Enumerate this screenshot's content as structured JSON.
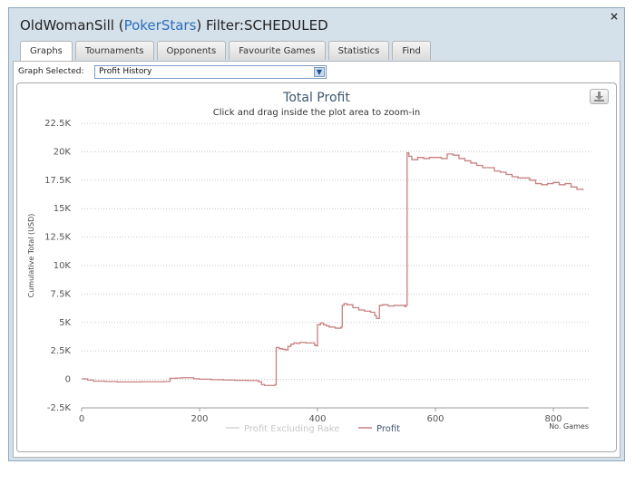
{
  "window": {
    "player": "OldWomanSill",
    "open_paren": " (",
    "site": "PokerStars",
    "close_paren": ") ",
    "filter": "Filter:SCHEDULED",
    "close_label": "×"
  },
  "tabs": [
    "Graphs",
    "Tournaments",
    "Opponents",
    "Favourite Games",
    "Statistics",
    "Find"
  ],
  "graph_selector": {
    "label": "Graph Selected:",
    "value": "Profit History"
  },
  "chart_data": {
    "type": "line",
    "title": "Total Profit",
    "subtitle": "Click and drag inside the plot area to zoom-in",
    "ylabel": "Cumulative Total (USD)",
    "xlabel": "No. Games",
    "xlim": [
      0,
      860
    ],
    "ylim": [
      -2500,
      22500
    ],
    "xticks": [
      0,
      200,
      400,
      600,
      800
    ],
    "xtick_labels": [
      "0",
      "200",
      "400",
      "600",
      "800"
    ],
    "yticks": [
      -2500,
      0,
      2500,
      5000,
      7500,
      10000,
      12500,
      15000,
      17500,
      20000,
      22500
    ],
    "ytick_labels": [
      "-2.5K",
      "0",
      "2.5K",
      "5K",
      "7.5K",
      "10K",
      "12.5K",
      "15K",
      "17.5K",
      "20K",
      "22.5K"
    ],
    "grid": "horizontal dotted",
    "legend_position": "bottom-center",
    "series": [
      {
        "name": "Profit Excluding Rake",
        "color": "#d5d5d5",
        "x": [],
        "y": []
      },
      {
        "name": "Profit",
        "color": "#c88080",
        "x": [
          0,
          10,
          20,
          40,
          60,
          80,
          100,
          120,
          140,
          148,
          150,
          160,
          170,
          185,
          190,
          200,
          220,
          240,
          260,
          280,
          300,
          305,
          310,
          320,
          328,
          330,
          335,
          340,
          345,
          350,
          355,
          360,
          365,
          370,
          380,
          395,
          398,
          400,
          405,
          410,
          415,
          420,
          430,
          440,
          442,
          445,
          450,
          460,
          470,
          480,
          490,
          497,
          500,
          505,
          510,
          520,
          530,
          540,
          548,
          550,
          552,
          555,
          560,
          570,
          580,
          590,
          600,
          610,
          620,
          630,
          640,
          650,
          660,
          670,
          680,
          690,
          700,
          710,
          720,
          730,
          740,
          750,
          760,
          770,
          780,
          790,
          800,
          810,
          820,
          830,
          840,
          850
        ],
        "y": [
          50,
          -50,
          -150,
          -180,
          -220,
          -220,
          -200,
          -200,
          -180,
          -180,
          100,
          120,
          150,
          150,
          60,
          20,
          -20,
          -50,
          -80,
          -100,
          -200,
          -450,
          -530,
          -530,
          -450,
          2800,
          2700,
          2650,
          2600,
          2900,
          3100,
          3200,
          3150,
          3250,
          3200,
          3000,
          2950,
          4800,
          4950,
          4800,
          4700,
          4600,
          4500,
          4600,
          6500,
          6650,
          6550,
          6300,
          6100,
          6000,
          5900,
          5600,
          5350,
          6500,
          6550,
          6450,
          6500,
          6500,
          6400,
          6500,
          19900,
          19600,
          19300,
          19500,
          19400,
          19500,
          19500,
          19400,
          19800,
          19700,
          19400,
          19200,
          19000,
          18800,
          18600,
          18600,
          18300,
          18200,
          18000,
          17800,
          17700,
          17700,
          17500,
          17200,
          17100,
          17200,
          17300,
          17100,
          17200,
          16900,
          16700,
          16600
        ]
      }
    ]
  }
}
